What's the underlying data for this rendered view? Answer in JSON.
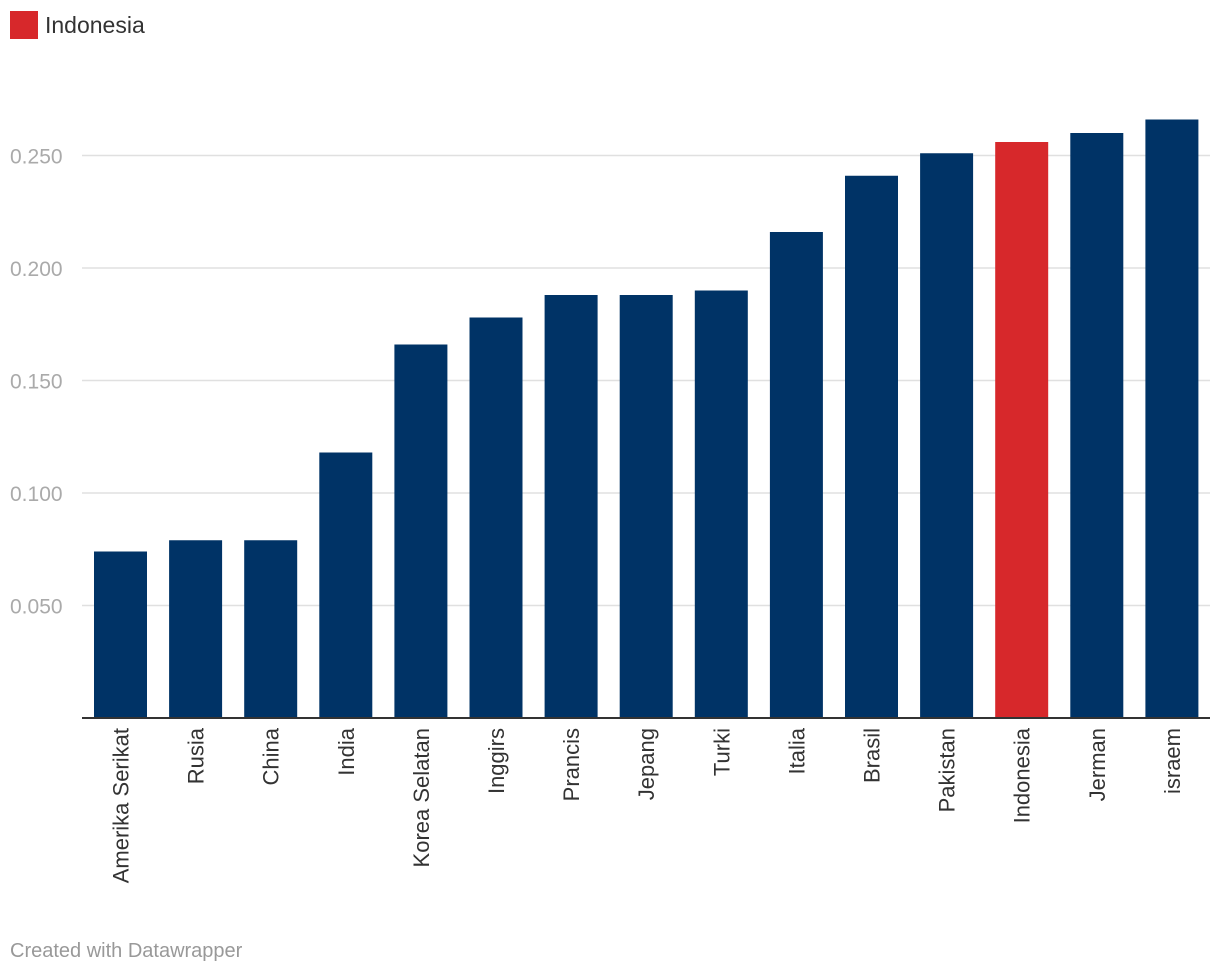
{
  "legend": {
    "label": "Indonesia",
    "color": "#d7282b"
  },
  "credit": "Created with Datawrapper",
  "colors": {
    "default_bar": "#003366",
    "highlight_bar": "#d7282b",
    "grid": "#e0e0e0",
    "baseline": "#333333"
  },
  "chart_data": {
    "type": "bar",
    "categories": [
      "Amerika Serikat",
      "Rusia",
      "China",
      "India",
      "Korea Selatan",
      "Inggirs",
      "Prancis",
      "Jepang",
      "Turki",
      "Italia",
      "Brasil",
      "Pakistan",
      "Indonesia",
      "Jerman",
      "israem"
    ],
    "values": [
      0.074,
      0.079,
      0.079,
      0.118,
      0.166,
      0.178,
      0.188,
      0.188,
      0.19,
      0.216,
      0.241,
      0.251,
      0.256,
      0.26,
      0.266
    ],
    "highlight": "Indonesia",
    "yticks": [
      "0.050",
      "0.100",
      "0.150",
      "0.200",
      "0.250"
    ],
    "ytick_values": [
      0.05,
      0.1,
      0.15,
      0.2,
      0.25
    ],
    "ylim": [
      0,
      0.28
    ],
    "grid": true,
    "legend_position": "top-left"
  }
}
